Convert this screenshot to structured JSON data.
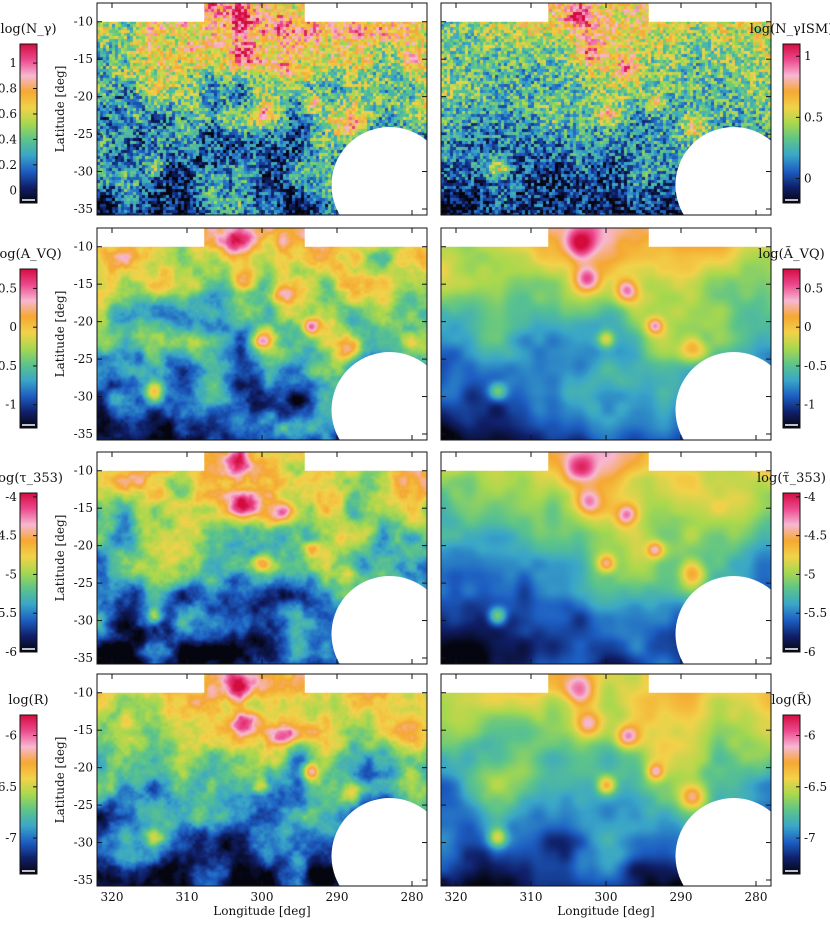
{
  "figure": {
    "xlabel": "Longitude [deg]",
    "ylabel": "Latitude [deg]",
    "x_ticks": [
      "320",
      "310",
      "300",
      "290",
      "280"
    ],
    "y_ticks": [
      "-10",
      "-15",
      "-20",
      "-25",
      "-30",
      "-35"
    ]
  },
  "chart_data": [
    {
      "type": "heatmap",
      "colorbar_label": "log(N_γ)",
      "x": [
        322,
        278
      ],
      "y": [
        -7.5,
        -35.8
      ],
      "xlim": [
        322,
        278
      ],
      "ylim": [
        -35.8,
        -7.5
      ],
      "colorbar_ticks": [
        "1",
        "0.8",
        "0.6",
        "0.4",
        "0.2",
        "0"
      ],
      "colorbar_range": [
        -0.1,
        1.15
      ],
      "colormap": [
        "#05050f",
        "#10206a",
        "#1d5ec2",
        "#3aa6c8",
        "#5cc48a",
        "#a8d84e",
        "#f2d24a",
        "#f5a832",
        "#f7b8d2",
        "#ec4a8e",
        "#d40c3e"
      ],
      "masked_regions": [
        "top-left",
        "top-right",
        "disc-bottom-right"
      ]
    },
    {
      "type": "heatmap",
      "colorbar_label": "log(N_γISM)",
      "x": [
        322,
        278
      ],
      "y": [
        -7.5,
        -35.8
      ],
      "xlim": [
        322,
        278
      ],
      "ylim": [
        -35.8,
        -7.5
      ],
      "colorbar_ticks": [
        "1",
        "0.5",
        "0"
      ],
      "colorbar_range": [
        -0.2,
        1.1
      ],
      "colormap": [
        "#05050f",
        "#10206a",
        "#1d5ec2",
        "#3aa6c8",
        "#5cc48a",
        "#a8d84e",
        "#f2d24a",
        "#f5a832",
        "#f7b8d2",
        "#ec4a8e",
        "#d40c3e"
      ],
      "masked_regions": [
        "top-left",
        "top-right",
        "disc-bottom-right"
      ]
    },
    {
      "type": "heatmap",
      "colorbar_label": "log(A_VQ)",
      "x": [
        322,
        278
      ],
      "y": [
        -7.5,
        -35.8
      ],
      "xlim": [
        322,
        278
      ],
      "ylim": [
        -35.8,
        -7.5
      ],
      "colorbar_ticks": [
        "0.5",
        "0",
        "-0.5",
        "-1"
      ],
      "colorbar_range": [
        -1.3,
        0.75
      ],
      "colormap": [
        "#05050f",
        "#10206a",
        "#1d5ec2",
        "#3aa6c8",
        "#5cc48a",
        "#a8d84e",
        "#f2d24a",
        "#f5a832",
        "#f7b8d2",
        "#ec4a8e",
        "#d40c3e"
      ],
      "masked_regions": [
        "top-left",
        "top-right",
        "disc-bottom-right"
      ]
    },
    {
      "type": "heatmap",
      "colorbar_label": "log(Ã_VQ)",
      "x": [
        322,
        278
      ],
      "y": [
        -7.5,
        -35.8
      ],
      "xlim": [
        322,
        278
      ],
      "ylim": [
        -35.8,
        -7.5
      ],
      "colorbar_ticks": [
        "0.5",
        "0",
        "-0.5",
        "-1"
      ],
      "colorbar_range": [
        -1.3,
        0.75
      ],
      "colormap": [
        "#05050f",
        "#10206a",
        "#1d5ec2",
        "#3aa6c8",
        "#5cc48a",
        "#a8d84e",
        "#f2d24a",
        "#f5a832",
        "#f7b8d2",
        "#ec4a8e",
        "#d40c3e"
      ],
      "masked_regions": [
        "top-left",
        "top-right",
        "disc-bottom-right"
      ]
    },
    {
      "type": "heatmap",
      "colorbar_label": "log(τ_353)",
      "x": [
        322,
        278
      ],
      "y": [
        -7.5,
        -35.8
      ],
      "xlim": [
        322,
        278
      ],
      "ylim": [
        -35.8,
        -7.5
      ],
      "colorbar_ticks": [
        "-4",
        "-4.5",
        "-5",
        "-5.5",
        "-6"
      ],
      "colorbar_range": [
        -6.0,
        -3.95
      ],
      "colormap": [
        "#05050f",
        "#10206a",
        "#1d5ec2",
        "#3aa6c8",
        "#5cc48a",
        "#a8d84e",
        "#f2d24a",
        "#f5a832",
        "#f7b8d2",
        "#ec4a8e",
        "#d40c3e"
      ],
      "masked_regions": [
        "top-left",
        "top-right",
        "disc-bottom-right"
      ]
    },
    {
      "type": "heatmap",
      "colorbar_label": "log(τ̃_353)",
      "x": [
        322,
        278
      ],
      "y": [
        -7.5,
        -35.8
      ],
      "xlim": [
        322,
        278
      ],
      "ylim": [
        -35.8,
        -7.5
      ],
      "colorbar_ticks": [
        "-4",
        "-4.5",
        "-5",
        "-5.5",
        "-6"
      ],
      "colorbar_range": [
        -6.0,
        -3.95
      ],
      "colormap": [
        "#05050f",
        "#10206a",
        "#1d5ec2",
        "#3aa6c8",
        "#5cc48a",
        "#a8d84e",
        "#f2d24a",
        "#f5a832",
        "#f7b8d2",
        "#ec4a8e",
        "#d40c3e"
      ],
      "masked_regions": [
        "top-left",
        "top-right",
        "disc-bottom-right"
      ]
    },
    {
      "type": "heatmap",
      "colorbar_label": "log(R)",
      "x": [
        322,
        278
      ],
      "y": [
        -7.5,
        -35.8
      ],
      "xlim": [
        322,
        278
      ],
      "ylim": [
        -35.8,
        -7.5
      ],
      "colorbar_ticks": [
        "-6",
        "-6.5",
        "-7"
      ],
      "colorbar_range": [
        -7.35,
        -5.8
      ],
      "colormap": [
        "#05050f",
        "#10206a",
        "#1d5ec2",
        "#3aa6c8",
        "#5cc48a",
        "#a8d84e",
        "#f2d24a",
        "#f5a832",
        "#f7b8d2",
        "#ec4a8e",
        "#d40c3e"
      ],
      "masked_regions": [
        "top-left",
        "top-right",
        "disc-bottom-right"
      ]
    },
    {
      "type": "heatmap",
      "colorbar_label": "log(R̃)",
      "x": [
        322,
        278
      ],
      "y": [
        -7.5,
        -35.8
      ],
      "xlim": [
        322,
        278
      ],
      "ylim": [
        -35.8,
        -7.5
      ],
      "colorbar_ticks": [
        "-6",
        "-6.5",
        "-7"
      ],
      "colorbar_range": [
        -7.35,
        -5.8
      ],
      "colormap": [
        "#05050f",
        "#10206a",
        "#1d5ec2",
        "#3aa6c8",
        "#5cc48a",
        "#a8d84e",
        "#f2d24a",
        "#f5a832",
        "#f7b8d2",
        "#ec4a8e",
        "#d40c3e"
      ],
      "masked_regions": [
        "top-left",
        "top-right",
        "disc-bottom-right"
      ]
    }
  ]
}
